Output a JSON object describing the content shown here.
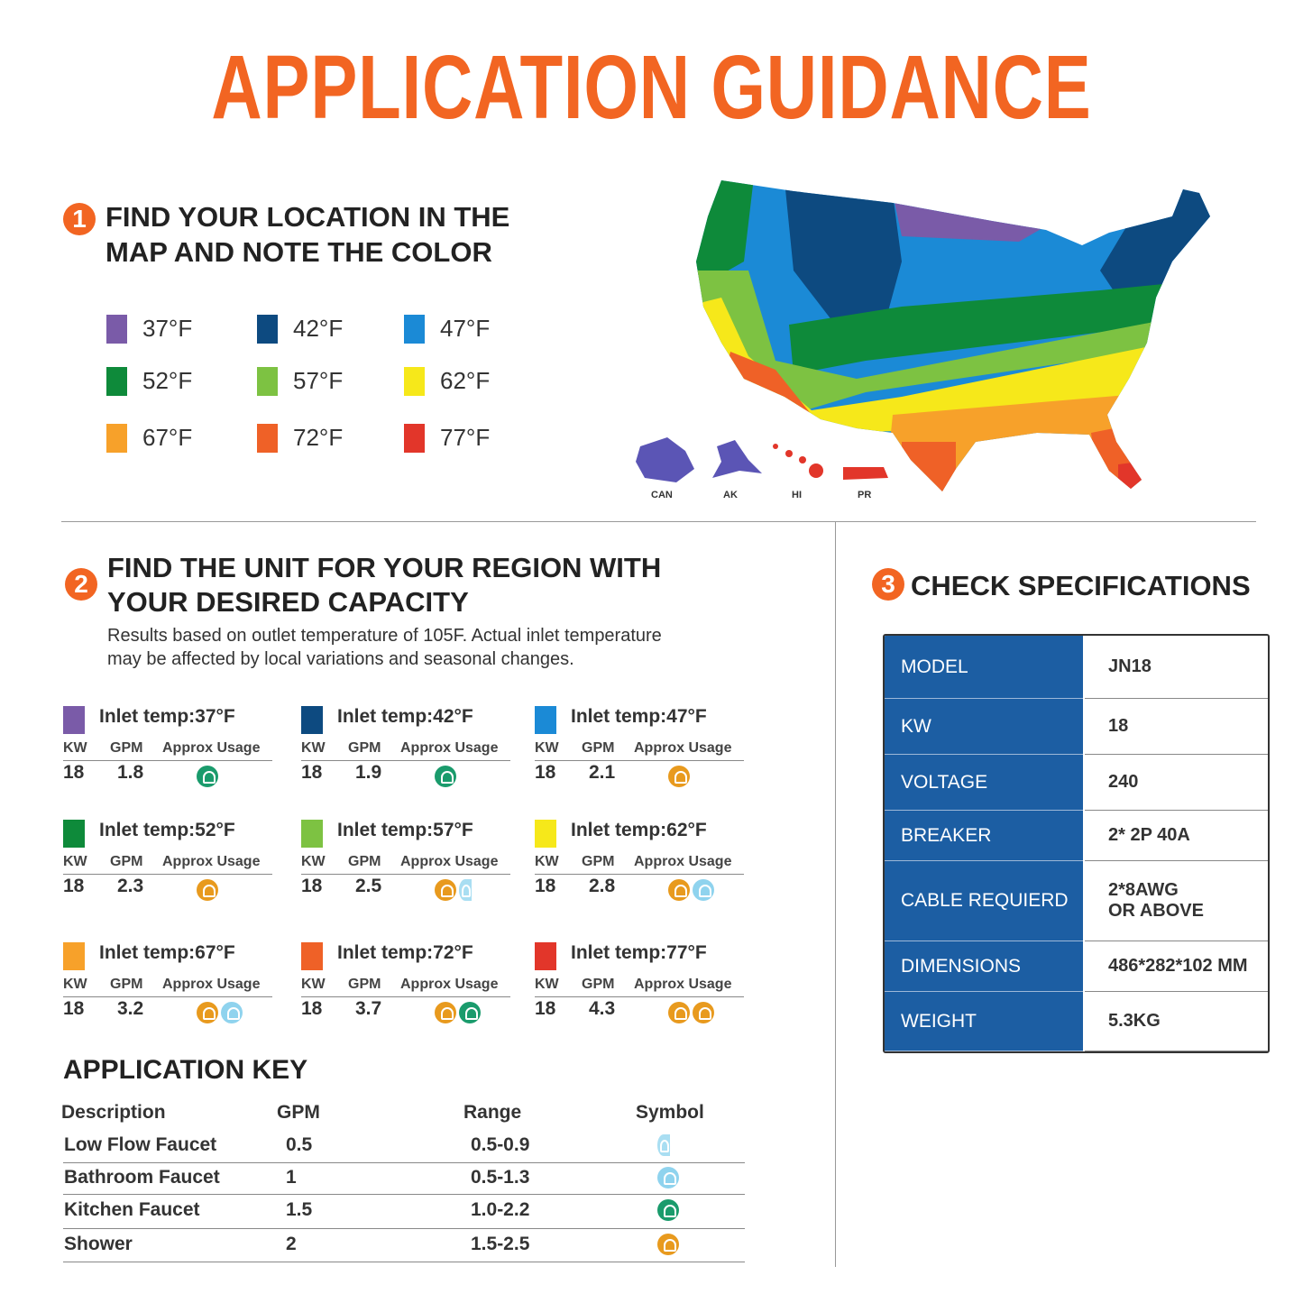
{
  "title": "APPLICATION GUIDANCE",
  "step1": {
    "number": "1",
    "heading": [
      "FIND YOUR LOCATION IN THE",
      "MAP AND NOTE THE COLOR"
    ],
    "legend": [
      {
        "label": "37°F",
        "color": "#7a5ba8"
      },
      {
        "label": "42°F",
        "color": "#0d4a80"
      },
      {
        "label": "47°F",
        "color": "#1b8ad6"
      },
      {
        "label": "52°F",
        "color": "#0e8a3a"
      },
      {
        "label": "57°F",
        "color": "#7dc242"
      },
      {
        "label": "62°F",
        "color": "#f6e81a"
      },
      {
        "label": "67°F",
        "color": "#f7a12a"
      },
      {
        "label": "72°F",
        "color": "#ef6127"
      },
      {
        "label": "77°F",
        "color": "#e2362a"
      }
    ]
  },
  "map": {
    "labels": [
      "CAN",
      "AK",
      "HI",
      "PR"
    ]
  },
  "step2": {
    "number": "2",
    "heading": [
      "FIND THE UNIT FOR YOUR REGION WITH",
      "YOUR DESIRED CAPACITY"
    ],
    "note": [
      "Results based on outlet temperature of 105F. Actual inlet temperature",
      "may be affected by local variations and seasonal changes."
    ],
    "column_headers": [
      "KW",
      "GPM",
      "Approx Usage"
    ],
    "units": [
      {
        "label": "Inlet temp:37°F",
        "color": "#7a5ba8",
        "kw": 18,
        "gpm": 1.8
      },
      {
        "label": "Inlet temp:42°F",
        "color": "#0d4a80",
        "kw": 18,
        "gpm": 1.9
      },
      {
        "label": "Inlet temp:47°F",
        "color": "#1b8ad6",
        "kw": 18,
        "gpm": 2.1
      },
      {
        "label": "Inlet temp:52°F",
        "color": "#0e8a3a",
        "kw": 18,
        "gpm": 2.3
      },
      {
        "label": "Inlet temp:57°F",
        "color": "#7dc242",
        "kw": 18,
        "gpm": 2.5
      },
      {
        "label": "Inlet temp:62°F",
        "color": "#f6e81a",
        "kw": 18,
        "gpm": 2.8
      },
      {
        "label": "Inlet temp:67°F",
        "color": "#f7a12a",
        "kw": 18,
        "gpm": 3.2
      },
      {
        "label": "Inlet temp:72°F",
        "color": "#ef6127",
        "kw": 18,
        "gpm": 3.7
      },
      {
        "label": "Inlet temp:77°F",
        "color": "#e2362a",
        "kw": 18,
        "gpm": 4.3
      }
    ]
  },
  "application_key": {
    "title": "APPLICATION KEY",
    "columns": [
      "Description",
      "GPM",
      "Range",
      "Symbol"
    ],
    "rows": [
      [
        "Low Flow Faucet",
        0.5,
        "0.5-0.9"
      ],
      [
        "Bathroom Faucet",
        1,
        "0.5-1.3"
      ],
      [
        "Kitchen Faucet",
        1.5,
        "1.0-2.2"
      ],
      [
        "Shower",
        2,
        "1.5-2.5"
      ]
    ]
  },
  "step3": {
    "number": "3",
    "heading": "CHECK SPECIFICATIONS",
    "rows": [
      [
        "MODEL",
        "JN18"
      ],
      [
        "KW",
        18
      ],
      [
        "VOLTAGE",
        240
      ],
      [
        "BREAKER",
        "2* 2P 40A"
      ],
      [
        "CABLE REQUIERD",
        [
          "2*8AWG",
          "OR ABOVE"
        ]
      ],
      [
        "DIMENSIONS",
        "486*282*102 MM"
      ],
      [
        "WEIGHT",
        "5.3KG"
      ]
    ]
  }
}
